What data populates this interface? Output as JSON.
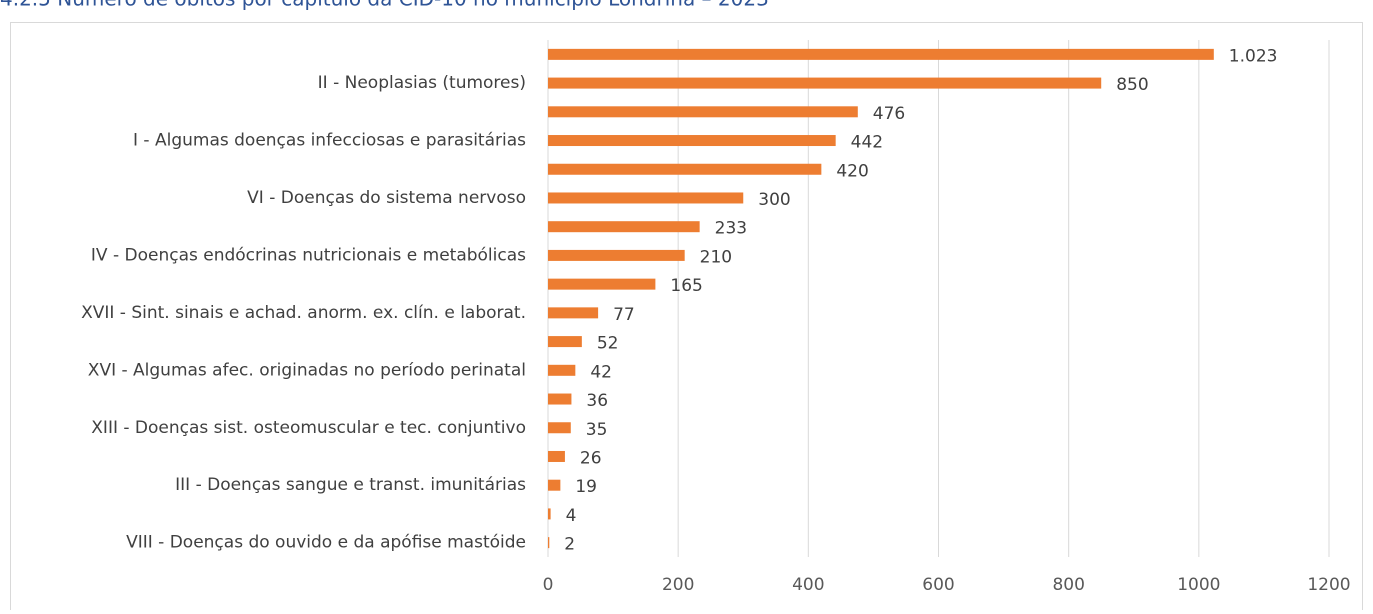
{
  "chart_data": {
    "type": "bar",
    "orientation": "horizontal",
    "title": "4.2.5 Número de óbitos por capítulo da CID-10 no município Londrina – 2023",
    "categories": [
      null,
      "II - Neoplasias (tumores)",
      null,
      "I - Algumas doenças infecciosas e parasitárias",
      null,
      "VI - Doenças do sistema nervoso",
      null,
      "IV - Doenças endócrinas nutricionais e metabólicas",
      null,
      "XVII - Sint. sinais e achad. anorm. ex. clín. e laborat.",
      null,
      "XVI - Algumas afec. originadas no período perinatal",
      null,
      "XIII - Doenças sist. osteomuscular e tec. conjuntivo",
      null,
      "III - Doenças sangue e transt. imunitárias",
      null,
      "VIII - Doenças do ouvido e da apófise mastóide"
    ],
    "values": [
      1023,
      850,
      476,
      442,
      420,
      300,
      233,
      210,
      165,
      77,
      52,
      42,
      36,
      35,
      26,
      19,
      4,
      2
    ],
    "value_labels": [
      "1.023",
      "850",
      "476",
      "442",
      "420",
      "300",
      "233",
      "210",
      "165",
      "77",
      "52",
      "42",
      "36",
      "35",
      "26",
      "19",
      "4",
      "2"
    ],
    "color": "#ed7d31",
    "xlim": [
      0,
      1200
    ],
    "xticks": [
      0,
      200,
      400,
      600,
      800,
      1000,
      1200
    ],
    "grid": true
  }
}
